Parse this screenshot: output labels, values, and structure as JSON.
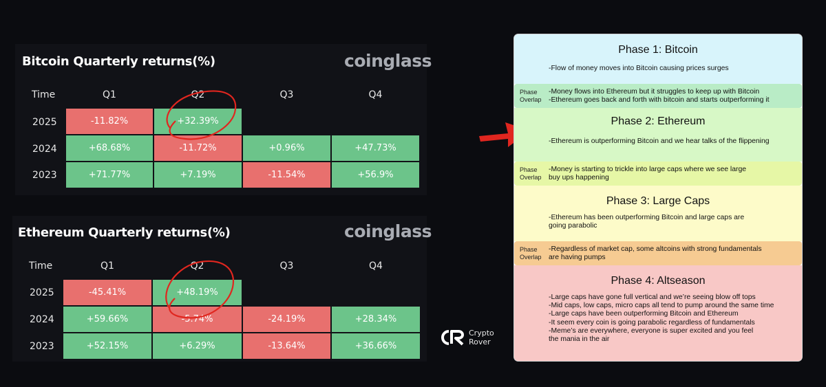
{
  "chart_data": [
    {
      "type": "table",
      "title": "Bitcoin Quarterly returns(%)",
      "source_logo": "coinglass",
      "corner_label": "Time",
      "columns": [
        "Q1",
        "Q2",
        "Q3",
        "Q4"
      ],
      "rows": [
        {
          "year": "2025",
          "values": [
            "-11.82%",
            "+32.39%",
            "",
            ""
          ]
        },
        {
          "year": "2024",
          "values": [
            "+68.68%",
            "-11.72%",
            "+0.96%",
            "+47.73%"
          ]
        },
        {
          "year": "2023",
          "values": [
            "+71.77%",
            "+7.19%",
            "-11.54%",
            "+56.9%"
          ]
        }
      ],
      "positive_color": "#6cc48a",
      "negative_color": "#e8706e"
    },
    {
      "type": "table",
      "title": "Ethereum Quarterly returns(%)",
      "source_logo": "coinglass",
      "corner_label": "Time",
      "columns": [
        "Q1",
        "Q2",
        "Q3",
        "Q4"
      ],
      "rows": [
        {
          "year": "2025",
          "values": [
            "-45.41%",
            "+48.19%",
            "",
            ""
          ]
        },
        {
          "year": "2024",
          "values": [
            "+59.66%",
            "-5.74%",
            "-24.19%",
            "+28.34%"
          ]
        },
        {
          "year": "2023",
          "values": [
            "+52.15%",
            "+6.29%",
            "-13.64%",
            "+36.66%"
          ]
        }
      ],
      "positive_color": "#6cc48a",
      "negative_color": "#e8706e"
    }
  ],
  "annotations": {
    "circle_color": "#e0261f",
    "arrow_color": "#e0261f"
  },
  "brand": {
    "line1": "Crypto",
    "line2": "Rover"
  },
  "phases": {
    "phase1": {
      "title": "Phase 1: Bitcoin",
      "text": "-Flow of money moves into Bitcoin causing prices surges",
      "color": "#d8f4fb"
    },
    "overlap1": {
      "label": "Phase\nOverlap",
      "text": "-Money flows into Ethereum but it struggles to keep up with Bitcoin\n-Ethereum goes back and forth with bitcoin and starts outperforming it",
      "color": "#b9ecc6"
    },
    "phase2": {
      "title": "Phase 2: Ethereum",
      "text": "-Ethereum is outperforming Bitcoin and we hear talks of the flippening",
      "color": "#d7f8c6"
    },
    "overlap2": {
      "label": "Phase\nOverlap",
      "text": "-Money is starting to trickle into large caps where we see large\nbuy ups happening",
      "color": "#e6f7a6"
    },
    "phase3": {
      "title": "Phase 3: Large Caps",
      "text": "-Ethereum has been outperforming Bitcoin and large caps are\ngoing parabolic",
      "color": "#fdfbc9"
    },
    "overlap3": {
      "label": "Phase\nOverlap",
      "text": "-Regardless of market cap, some altcoins with strong fundamentals\nare having pumps",
      "color": "#f6cb92"
    },
    "phase4": {
      "title": "Phase 4: Altseason",
      "text": "-Large caps have gone full vertical and we’re seeing blow off tops\n-Mid caps, low caps, micro caps all tend to pump around the same time\n-Large caps have been outperforming Bitcoin and Ethereum\n-It seem every coin is going parabolic regardless of fundamentals\n-Meme’s are everywhere, everyone is super excited and you feel\nthe mania in the air",
      "color": "#f8c8c6"
    }
  }
}
